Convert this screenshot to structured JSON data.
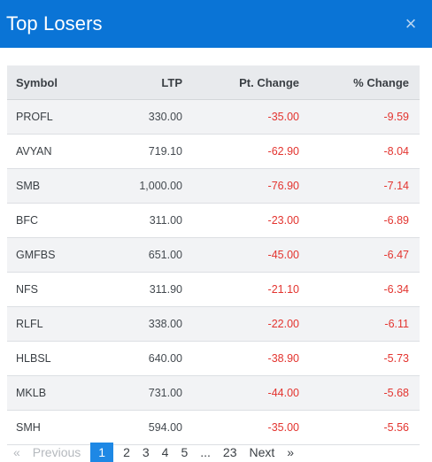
{
  "modal": {
    "title": "Top Losers",
    "close_label": "×"
  },
  "table": {
    "headers": [
      "Symbol",
      "LTP",
      "Pt. Change",
      "% Change"
    ],
    "rows": [
      [
        "PROFL",
        "330.00",
        "-35.00",
        "-9.59"
      ],
      [
        "AVYAN",
        "719.10",
        "-62.90",
        "-8.04"
      ],
      [
        "SMB",
        "1,000.00",
        "-76.90",
        "-7.14"
      ],
      [
        "BFC",
        "311.00",
        "-23.00",
        "-6.89"
      ],
      [
        "GMFBS",
        "651.00",
        "-45.00",
        "-6.47"
      ],
      [
        "NFS",
        "311.90",
        "-21.10",
        "-6.34"
      ],
      [
        "RLFL",
        "338.00",
        "-22.00",
        "-6.11"
      ],
      [
        "HLBSL",
        "640.00",
        "-38.90",
        "-5.73"
      ],
      [
        "MKLB",
        "731.00",
        "-44.00",
        "-5.68"
      ],
      [
        "SMH",
        "594.00",
        "-35.00",
        "-5.56"
      ]
    ]
  },
  "pagination": {
    "first": "«",
    "previous": "Previous",
    "pages": [
      "1",
      "2",
      "3",
      "4",
      "5",
      "...",
      "23"
    ],
    "active": "1",
    "next": "Next",
    "last": "»"
  },
  "colors": {
    "header": "#0a74d6",
    "negative": "#e3342f",
    "active_page": "#1e88e5"
  }
}
